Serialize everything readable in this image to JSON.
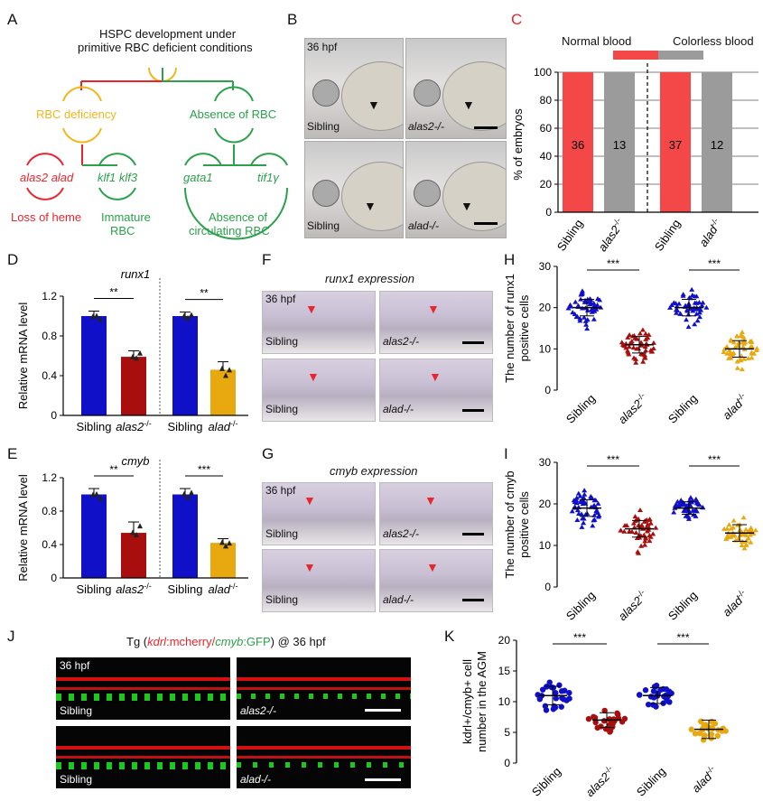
{
  "panelA": {
    "label": "A",
    "title_line1": "HSPC development under",
    "title_line2": "primitive RBC deficient conditions",
    "rbc_deficiency": "RBC deficiency",
    "absence_rbc": "Absence of RBC",
    "gene_alas2_alad": "alas2 alad",
    "gene_klf": "klf1 klf3",
    "gene_gata1": "gata1",
    "gene_tif1g": "tif1γ",
    "loss_heme": "Loss of heme",
    "immature_1": "Immature",
    "immature_2": "RBC",
    "absence_circ_1": "Absence of",
    "absence_circ_2": "circulating RBC",
    "colors": {
      "red": "#e8262d",
      "green": "#2aa14a",
      "yellow": "#f2b61c"
    }
  },
  "panelB": {
    "label": "B",
    "timepoint": "36 hpf",
    "images": [
      "Sibling",
      "alas2-/-",
      "Sibling",
      "alad-/-"
    ]
  },
  "panelC": {
    "label": "C",
    "legend_normal": "Normal blood",
    "legend_colorless": "Colorless blood",
    "chart_data": {
      "type": "bar",
      "ylabel": "% of embryos",
      "ylim": [
        0,
        100
      ],
      "yticks": [
        0,
        20,
        40,
        60,
        80,
        100
      ],
      "categories": [
        "Sibling",
        "alas2-/-",
        "Sibling",
        "alad-/-"
      ],
      "values": [
        100,
        100,
        100,
        100
      ],
      "data_labels": [
        "36",
        "13",
        "37",
        "12"
      ],
      "colors": [
        "#f44848",
        "#9b9b9b",
        "#f44848",
        "#9b9b9b"
      ]
    }
  },
  "panelD": {
    "label": "D",
    "chart_data": {
      "type": "bar",
      "title": "runx1",
      "ylabel": "Relative mRNA level",
      "ylim": [
        0,
        1.2
      ],
      "yticks": [
        0,
        0.4,
        0.8,
        1.2
      ],
      "categories": [
        "Sibling",
        "alas2-/-",
        "Sibling",
        "alad-/-"
      ],
      "values": [
        1.0,
        0.59,
        1.0,
        0.46
      ],
      "errors": [
        0.05,
        0.06,
        0.04,
        0.08
      ],
      "significance": [
        "**",
        "**"
      ],
      "colors": [
        "#1010c8",
        "#a80e0e",
        "#1010c8",
        "#e8a810"
      ]
    }
  },
  "panelE": {
    "label": "E",
    "chart_data": {
      "type": "bar",
      "title": "cmyb",
      "ylabel": "Relative mRNA level",
      "ylim": [
        0,
        1.2
      ],
      "yticks": [
        0,
        0.4,
        0.8,
        1.2
      ],
      "categories": [
        "Sibling",
        "alas2-/-",
        "Sibling",
        "alad-/-"
      ],
      "values": [
        1.0,
        0.54,
        1.0,
        0.42
      ],
      "errors": [
        0.07,
        0.13,
        0.07,
        0.05
      ],
      "significance": [
        "**",
        "***"
      ],
      "colors": [
        "#1010c8",
        "#a80e0e",
        "#1010c8",
        "#e8a810"
      ]
    }
  },
  "panelF": {
    "label": "F",
    "title": "runx1 expression",
    "timepoint": "36 hpf",
    "images": [
      "Sibling",
      "alas2-/-",
      "Sibling",
      "alad-/-"
    ]
  },
  "panelG": {
    "label": "G",
    "title": "cmyb expression",
    "timepoint": "36 hpf",
    "images": [
      "Sibling",
      "alas2-/-",
      "Sibling",
      "alad-/-"
    ]
  },
  "panelH": {
    "label": "H",
    "chart_data": {
      "type": "scatter",
      "ylabel_line1": "The number of runx1",
      "ylabel_line2": "positive cells",
      "ylim": [
        0,
        30
      ],
      "yticks": [
        0,
        10,
        20,
        30
      ],
      "categories": [
        "Sibling",
        "alas2-/-",
        "Sibling",
        "alad-/-"
      ],
      "means": [
        20,
        11,
        20,
        10
      ],
      "sd": [
        2,
        2,
        2,
        2
      ],
      "ranges": [
        [
          14,
          25
        ],
        [
          5,
          16
        ],
        [
          14,
          25
        ],
        [
          4,
          15
        ]
      ],
      "significance": [
        "***",
        "***"
      ],
      "colors": [
        "#1010c8",
        "#a80e0e",
        "#1010c8",
        "#e8a810"
      ]
    }
  },
  "panelI": {
    "label": "I",
    "chart_data": {
      "type": "scatter",
      "ylabel_line1": "The number of cmyb",
      "ylabel_line2": "positive cells",
      "ylim": [
        0,
        30
      ],
      "yticks": [
        0,
        10,
        20,
        30
      ],
      "categories": [
        "Sibling",
        "alas2-/-",
        "Sibling",
        "alad-/-"
      ],
      "means": [
        19,
        14,
        19,
        13
      ],
      "sd": [
        2,
        2,
        1.5,
        2
      ],
      "ranges": [
        [
          11,
          24
        ],
        [
          8,
          20
        ],
        [
          14,
          23
        ],
        [
          8,
          18
        ]
      ],
      "significance": [
        "***",
        "***"
      ],
      "colors": [
        "#1010c8",
        "#a80e0e",
        "#1010c8",
        "#e8a810"
      ]
    }
  },
  "panelJ": {
    "label": "J",
    "title_prefix": "Tg (",
    "title_kdrl": "kdrl",
    "title_mcherry": ":mcherry/",
    "title_cmyb": "cmyb",
    "title_gfp": ":GFP",
    "title_suffix": ") @ 36 hpf",
    "timepoint": "36 hpf",
    "images": [
      "Sibling",
      "alas2-/-",
      "Sibling",
      "alad-/-"
    ]
  },
  "panelK": {
    "label": "K",
    "chart_data": {
      "type": "scatter",
      "ylabel_line1": "kdrl+/cmyb+ cell",
      "ylabel_line2": "number in the AGM",
      "ylim": [
        0,
        20
      ],
      "yticks": [
        0,
        5,
        10,
        15,
        20
      ],
      "categories": [
        "Sibling",
        "alas2-/-",
        "Sibling",
        "alad-/-"
      ],
      "means": [
        11,
        7,
        11,
        5.5
      ],
      "sd": [
        1.5,
        1.2,
        1.3,
        1.5
      ],
      "ranges": [
        [
          8,
          15
        ],
        [
          4,
          9
        ],
        [
          8,
          14
        ],
        [
          3,
          8
        ]
      ],
      "significance": [
        "***",
        "***"
      ],
      "colors": [
        "#1010c8",
        "#a80e0e",
        "#1010c8",
        "#e8a810"
      ]
    }
  }
}
